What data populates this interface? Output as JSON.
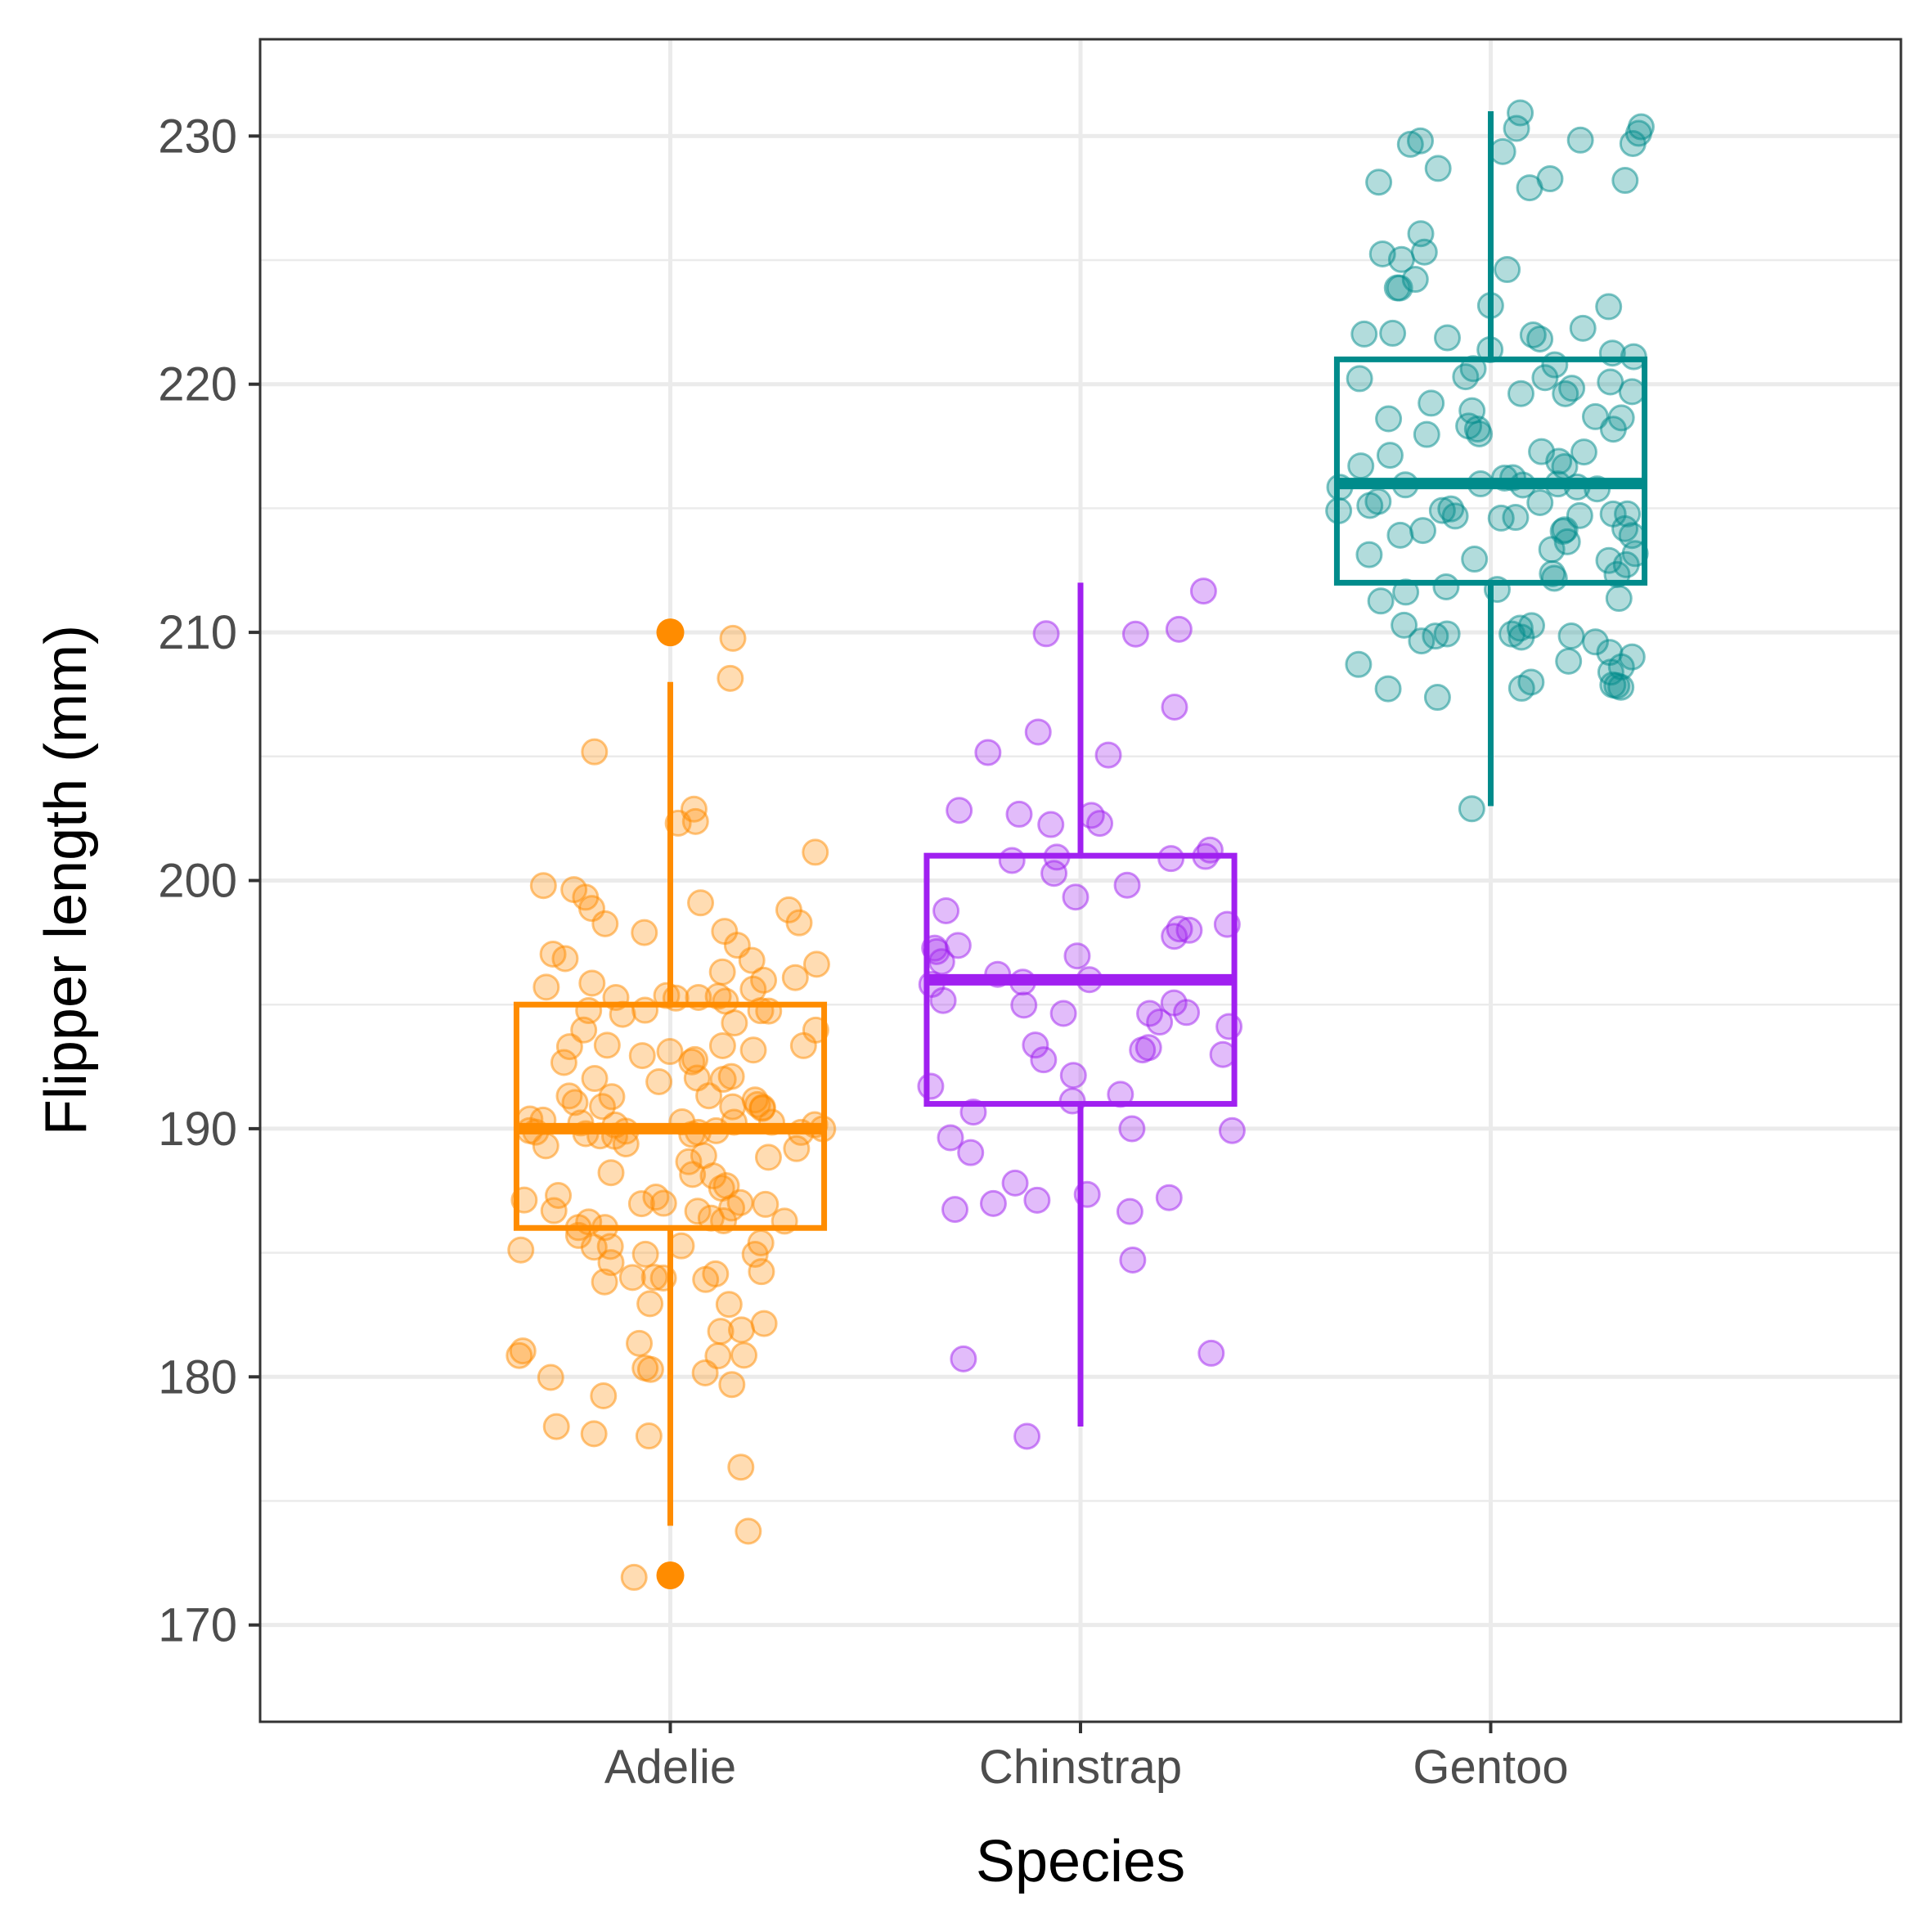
{
  "chart_data": {
    "type": "boxplot",
    "xlabel": "Species",
    "ylabel": "Flipper length (mm)",
    "categories": [
      "Adelie",
      "Chinstrap",
      "Gentoo"
    ],
    "ylim": [
      166.1,
      233.9
    ],
    "yticks": [
      170,
      180,
      190,
      200,
      210,
      220,
      230
    ],
    "grid": true,
    "legend": "none",
    "colors": {
      "Adelie": "#ff8c00",
      "Chinstrap": "#a020f0",
      "Gentoo": "#008b8b"
    },
    "boxes": [
      {
        "category": "Adelie",
        "lower_whisker": 174,
        "q1": 186,
        "median": 190,
        "q3": 195,
        "upper_whisker": 208,
        "outliers": [
          210,
          172
        ]
      },
      {
        "category": "Chinstrap",
        "lower_whisker": 178,
        "q1": 191,
        "median": 196,
        "q3": 201,
        "upper_whisker": 212,
        "outliers": []
      },
      {
        "category": "Gentoo",
        "lower_whisker": 203,
        "q1": 212,
        "median": 216,
        "q3": 221,
        "upper_whisker": 231,
        "outliers": []
      }
    ],
    "points": [
      {
        "category": "Adelie",
        "values": [
          181,
          186,
          195,
          193,
          190,
          181,
          195,
          193,
          190,
          186,
          180,
          182,
          191,
          198,
          185,
          195,
          197,
          184,
          194,
          174,
          180,
          189,
          185,
          180,
          187,
          183,
          187,
          172,
          180,
          178,
          178,
          188,
          184,
          195,
          196,
          190,
          180,
          181,
          184,
          182,
          195,
          186,
          196,
          185,
          190,
          182,
          179,
          190,
          191,
          186,
          188,
          190,
          200,
          187,
          191,
          186,
          193,
          181,
          194,
          185,
          195,
          185,
          192,
          184,
          192,
          195,
          188,
          190,
          198,
          190,
          190,
          196,
          197,
          190,
          195,
          191,
          184,
          187,
          195,
          189,
          196,
          187,
          193,
          191,
          194,
          190,
          189,
          189,
          190,
          202,
          205,
          185,
          186,
          187,
          208,
          190,
          196,
          178,
          192,
          192,
          203,
          183,
          190,
          193,
          184,
          199,
          190,
          181,
          197,
          198,
          191,
          193,
          197,
          191,
          196,
          188,
          199,
          189,
          189,
          187,
          198,
          176,
          202,
          186,
          199,
          191,
          195,
          191,
          210,
          190,
          197,
          193,
          199,
          187,
          190,
          191,
          200,
          185,
          193,
          193,
          187,
          188,
          190,
          192,
          185,
          190,
          184,
          195,
          193,
          187,
          201
        ]
      },
      {
        "category": "Chinstrap",
        "values": [
          192,
          196,
          193,
          188,
          197,
          198,
          178,
          197,
          195,
          198,
          193,
          194,
          185,
          201,
          190,
          201,
          197,
          181,
          190,
          195,
          181,
          191,
          187,
          193,
          195,
          197,
          200,
          200,
          191,
          205,
          187,
          201,
          187,
          203,
          195,
          199,
          195,
          210,
          192,
          205,
          210,
          187,
          196,
          196,
          196,
          201,
          190,
          212,
          187,
          198,
          199,
          201,
          193,
          203,
          187,
          197,
          191,
          203,
          202,
          194,
          206,
          189,
          195,
          207,
          202,
          193,
          210,
          198
        ]
      },
      {
        "category": "Gentoo",
        "values": [
          211,
          230,
          210,
          218,
          215,
          210,
          211,
          219,
          209,
          215,
          214,
          216,
          214,
          216,
          214,
          213,
          210,
          217,
          210,
          221,
          209,
          222,
          218,
          215,
          213,
          215,
          215,
          215,
          216,
          215,
          210,
          220,
          222,
          209,
          207,
          230,
          220,
          220,
          213,
          219,
          208,
          208,
          208,
          225,
          210,
          216,
          222,
          217,
          210,
          225,
          213,
          215,
          210,
          220,
          210,
          225,
          217,
          220,
          208,
          220,
          208,
          224,
          208,
          221,
          214,
          231,
          219,
          230,
          214,
          229,
          220,
          223,
          216,
          221,
          221,
          217,
          216,
          230,
          209,
          220,
          215,
          223,
          212,
          221,
          212,
          224,
          212,
          228,
          218,
          218,
          212,
          230,
          218,
          228,
          212,
          224,
          214,
          226,
          216,
          222,
          203,
          225,
          219,
          228,
          215,
          228,
          216,
          215,
          210,
          219,
          208,
          209,
          216,
          229,
          213,
          230,
          217,
          230,
          217,
          222,
          214,
          215,
          222,
          212,
          213
        ]
      }
    ]
  }
}
